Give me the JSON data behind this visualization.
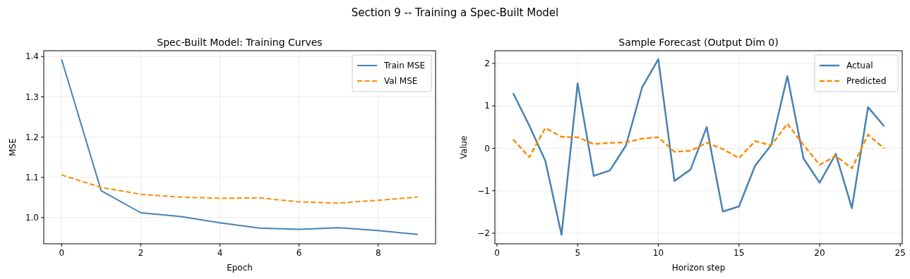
{
  "chart_data": [
    {
      "type": "line",
      "title": "Spec-Built Model: Training Curves",
      "xlabel": "Epoch",
      "ylabel": "MSE",
      "annotations": [
        "Section 9 -- Training a Spec-Built Model"
      ],
      "x": [
        0,
        1,
        2,
        3,
        4,
        5,
        6,
        7,
        8,
        9
      ],
      "xlim": [
        -0.45,
        9.45
      ],
      "xticks": [
        0,
        2,
        4,
        6,
        8
      ],
      "ylim": [
        0.935,
        1.4145
      ],
      "yticks": [
        {
          "value": 1.0,
          "label": "1.0"
        },
        1.1,
        1.2,
        1.3,
        1.4
      ],
      "grid": true,
      "legend": "top right",
      "series": [
        {
          "name": "Train MSE",
          "color": "#4682b4",
          "line_style": "solid",
          "values": [
            1.393,
            1.067,
            1.012,
            1.003,
            0.987,
            0.974,
            0.971,
            0.975,
            0.968,
            0.958
          ]
        },
        {
          "name": "Val MSE",
          "color": "#ff8c00",
          "line_style": "dashed",
          "values": [
            1.106,
            1.075,
            1.058,
            1.051,
            1.048,
            1.049,
            1.039,
            1.036,
            1.043,
            1.051
          ]
        }
      ]
    },
    {
      "type": "line",
      "title": "Sample Forecast (Output Dim 0)",
      "xlabel": "Horizon step",
      "ylabel": "Value",
      "x": [
        1,
        2,
        3,
        4,
        5,
        6,
        7,
        8,
        9,
        10,
        11,
        12,
        13,
        14,
        15,
        16,
        17,
        18,
        19,
        20,
        21,
        22,
        23,
        24
      ],
      "xlim": [
        -0.13,
        25.12
      ],
      "xticks": [
        0,
        5,
        10,
        15,
        20,
        25
      ],
      "ylim": [
        -2.25,
        2.3
      ],
      "yticks": [
        {
          "value": -2,
          "label": "−2"
        },
        {
          "value": -1,
          "label": "−1"
        },
        0,
        1,
        2
      ],
      "grid": true,
      "legend": "top right",
      "series": [
        {
          "name": "Actual",
          "color": "#4682b4",
          "line_style": "solid",
          "values": [
            1.3,
            0.54,
            -0.3,
            -2.04,
            1.53,
            -0.65,
            -0.52,
            0.07,
            1.44,
            2.1,
            -0.77,
            -0.5,
            0.5,
            -1.49,
            -1.37,
            -0.41,
            0.08,
            1.7,
            -0.24,
            -0.81,
            -0.13,
            -1.41,
            0.97,
            0.52
          ]
        },
        {
          "name": "Predicted",
          "color": "#ff8c00",
          "line_style": "dashed",
          "values": [
            0.21,
            -0.21,
            0.48,
            0.27,
            0.26,
            0.1,
            0.13,
            0.14,
            0.23,
            0.26,
            -0.08,
            -0.06,
            0.13,
            -0.02,
            -0.23,
            0.17,
            0.07,
            0.58,
            0.08,
            -0.39,
            -0.18,
            -0.47,
            0.32,
            0.0
          ]
        }
      ]
    }
  ]
}
